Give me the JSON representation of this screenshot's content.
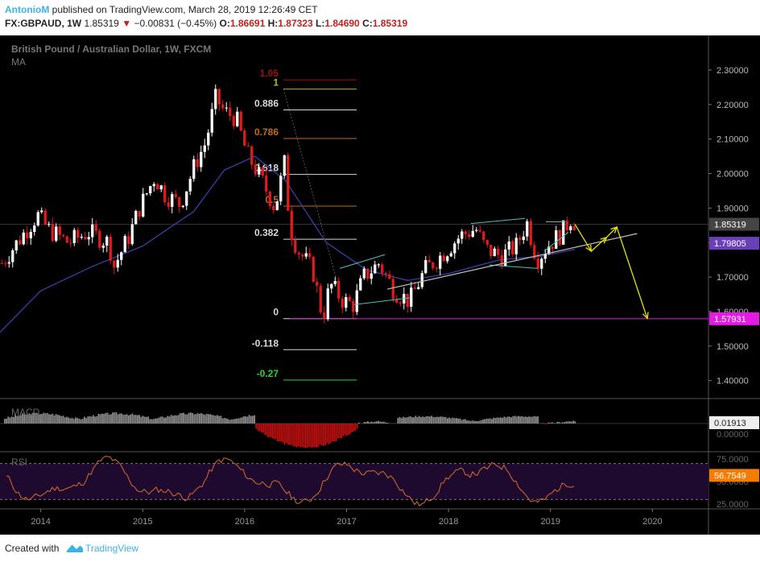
{
  "header": {
    "author": "AntonioM",
    "published": "published on TradingView.com, March 28, 2019 12:26:49 CET",
    "symbol": "FX:GBPAUD",
    "interval": "1W",
    "last": "1.85319",
    "change": "−0.00831 (−0.45%)",
    "o_label": "O:",
    "o_value": "1.86691",
    "h_label": "H:",
    "h_value": "1.87323",
    "l_label": "L:",
    "l_value": "1.84690",
    "c_label": "C:",
    "c_value": "1.85319"
  },
  "colors": {
    "background": "#000000",
    "up_candle": "#ffffff",
    "down_candle": "#e01b1b",
    "ma": "#3a3fa8",
    "trendline": "#bfbfbf",
    "forecast": "#e6e600",
    "channel": "#4fc1c6",
    "support": "#e21ce2",
    "rsi_line": "#d86b2d",
    "rsi_band": "#1e0a2e",
    "price_tag": "#444444",
    "ma_tag": "#6b3fb8",
    "rsi_tag": "#f57c00",
    "tv_blue": "#3bb3e4"
  },
  "chart_data": [
    {
      "type": "candlestick",
      "title": "British Pound / Australian Dollar, 1W, FXCM",
      "indicator": "MA",
      "x_ticks": [
        "2014",
        "2015",
        "2016",
        "2017",
        "2018",
        "2019",
        "2020"
      ],
      "y_ticks": [
        "2.30000",
        "2.20000",
        "2.10000",
        "2.00000",
        "1.90000",
        "1.80000",
        "1.70000",
        "1.60000",
        "1.50000",
        "1.40000"
      ],
      "ylim": [
        1.35,
        2.35
      ],
      "path": [
        [
          "2013.6",
          1.74
        ],
        [
          "2013.75",
          1.8
        ],
        [
          "2013.95",
          1.88
        ],
        [
          "2014.05",
          1.84
        ],
        [
          "2014.25",
          1.8
        ],
        [
          "2014.45",
          1.83
        ],
        [
          "2014.65",
          1.8
        ],
        [
          "2014.7",
          1.73
        ],
        [
          "2014.85",
          1.82
        ],
        [
          "2014.95",
          1.9
        ],
        [
          "2015.1",
          1.99
        ],
        [
          "2015.2",
          1.94
        ],
        [
          "2015.35",
          1.91
        ],
        [
          "2015.5",
          2.03
        ],
        [
          "2015.6",
          2.09
        ],
        [
          "2015.7",
          2.22
        ],
        [
          "2015.78",
          2.18
        ],
        [
          "2015.9",
          2.16
        ],
        [
          "2016.0",
          2.06
        ],
        [
          "2016.15",
          1.98
        ],
        [
          "2016.28",
          1.9
        ],
        [
          "2016.38",
          2.04
        ],
        [
          "2016.42",
          1.85
        ],
        [
          "2016.5",
          1.78
        ],
        [
          "2016.65",
          1.72
        ],
        [
          "2016.75",
          1.58
        ],
        [
          "2016.82",
          1.68
        ],
        [
          "2016.95",
          1.63
        ],
        [
          "2017.05",
          1.62
        ],
        [
          "2017.15",
          1.7
        ],
        [
          "2017.3",
          1.74
        ],
        [
          "2017.45",
          1.66
        ],
        [
          "2017.6",
          1.63
        ],
        [
          "2017.75",
          1.72
        ],
        [
          "2017.9",
          1.76
        ],
        [
          "2018.1",
          1.82
        ],
        [
          "2018.25",
          1.84
        ],
        [
          "2018.35",
          1.78
        ],
        [
          "2018.5",
          1.76
        ],
        [
          "2018.65",
          1.79
        ],
        [
          "2018.75",
          1.86
        ],
        [
          "2018.85",
          1.75
        ],
        [
          "2018.95",
          1.79
        ],
        [
          "2019.1",
          1.83
        ],
        [
          "2019.18",
          1.87
        ],
        [
          "2019.24",
          1.853
        ]
      ],
      "ma_path": [
        [
          "2013.6",
          1.54
        ],
        [
          "2014.0",
          1.66
        ],
        [
          "2014.5",
          1.73
        ],
        [
          "2015.0",
          1.79
        ],
        [
          "2015.5",
          1.89
        ],
        [
          "2015.8",
          2.01
        ],
        [
          "2016.1",
          2.05
        ],
        [
          "2016.4",
          1.98
        ],
        [
          "2016.8",
          1.8
        ],
        [
          "2017.2",
          1.72
        ],
        [
          "2017.6",
          1.69
        ],
        [
          "2018.0",
          1.71
        ],
        [
          "2018.5",
          1.75
        ],
        [
          "2018.9",
          1.76
        ],
        [
          "2019.24",
          1.78
        ]
      ],
      "last_price": "1.85319",
      "ma_value": "1.79805",
      "support_level": "1.57931",
      "fibonacci": [
        {
          "label": "1.05",
          "level": 2.2715,
          "color": "#a01010"
        },
        {
          "label": "1",
          "level": 2.245,
          "color": "#b5b51e"
        },
        {
          "label": "0.886",
          "level": 2.1845,
          "color": "#d9d9d9"
        },
        {
          "label": "0.786",
          "level": 2.1015,
          "color": "#c46a1a"
        },
        {
          "label": "0.618",
          "level": 1.9975,
          "color": "#d9d9d9"
        },
        {
          "label": "0.5",
          "level": 1.9055,
          "color": "#c46a1a"
        },
        {
          "label": "0.382",
          "level": 1.8095,
          "color": "#d9d9d9"
        },
        {
          "label": "0",
          "level": 1.5795,
          "color": "#d9d9d9"
        },
        {
          "label": "-0.118",
          "level": 1.4895,
          "color": "#d9d9d9"
        },
        {
          "label": "-0.27",
          "level": 1.4015,
          "color": "#22dd22"
        }
      ],
      "forecast": [
        [
          "2019.24",
          1.853
        ],
        [
          "2019.4",
          1.775
        ],
        [
          "2019.55",
          1.815
        ],
        [
          "2019.65",
          1.845
        ],
        [
          "2019.95",
          1.58
        ]
      ],
      "trendline": [
        [
          "2017.4",
          1.665
        ],
        [
          "2019.85",
          1.826
        ]
      ]
    },
    {
      "type": "histogram",
      "title": "MACD",
      "value": "0.01913",
      "ytick": "0.00000",
      "series": [
        {
          "name": "hist",
          "range": [
            "2013.6",
            "2016.1"
          ],
          "shape": "positive"
        },
        {
          "name": "hist",
          "range": [
            "2016.1",
            "2017.1"
          ],
          "shape": "negative"
        },
        {
          "name": "hist",
          "range": [
            "2017.1",
            "2019.24"
          ],
          "shape": "mixed"
        }
      ]
    },
    {
      "type": "line",
      "title": "RSI",
      "value": "56.7549",
      "yticks": [
        "75.0000",
        "50.0000",
        "25.0000"
      ],
      "bands": [
        70,
        30
      ]
    }
  ],
  "footer": {
    "created": "Created with",
    "brand": "TradingView"
  }
}
